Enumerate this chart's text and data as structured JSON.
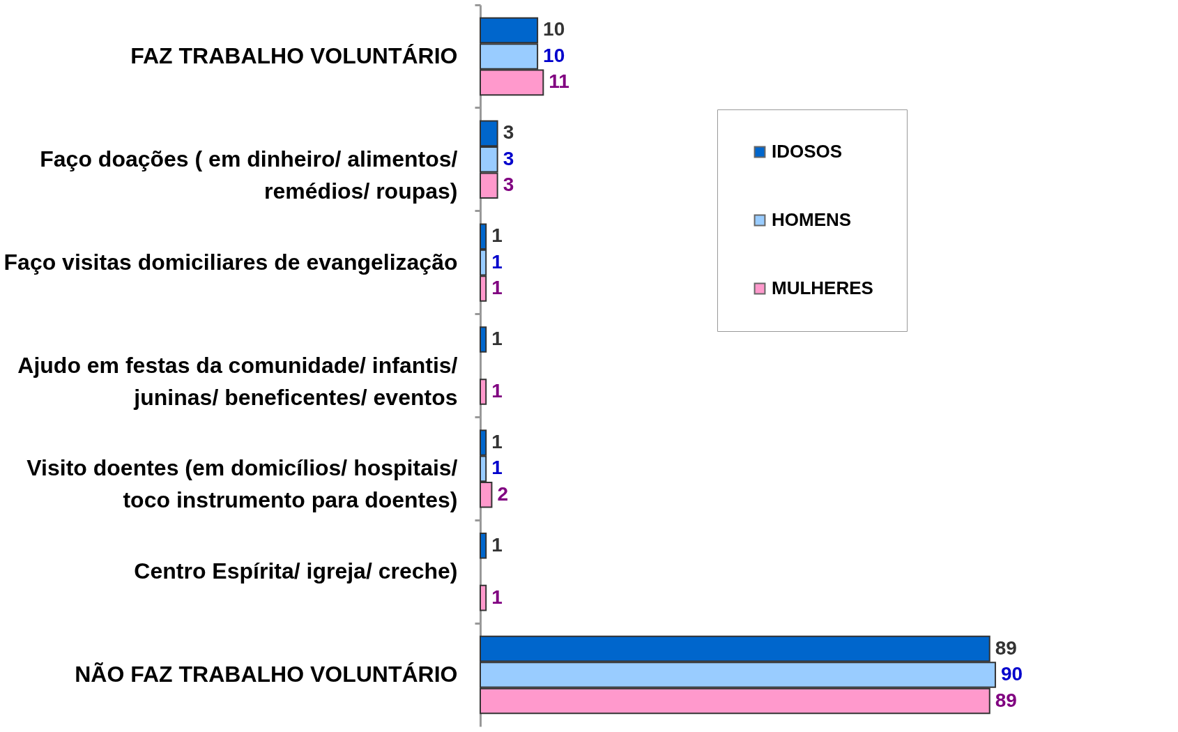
{
  "chart_data": {
    "type": "bar",
    "orientation": "horizontal",
    "categories": [
      "FAZ TRABALHO VOLUNTÁRIO",
      "Faço doações ( em dinheiro/ alimentos/\nremédios/ roupas)",
      "Faço visitas domiciliares de evangelização",
      "Ajudo em festas da comunidade/  infantis/\njuninas/ beneficentes/ eventos",
      "Visito doentes (em domicílios/ hospitais/\ntoco instrumento para doentes)",
      "Centro Espírita/ igreja/ creche)",
      "NÃO FAZ TRABALHO VOLUNTÁRIO"
    ],
    "series": [
      {
        "name": "IDOSOS",
        "color": "#0066cc",
        "values": [
          10,
          3,
          1,
          1,
          1,
          1,
          89
        ]
      },
      {
        "name": "HOMENS",
        "color": "#99ccff",
        "values": [
          10,
          3,
          1,
          null,
          1,
          null,
          90
        ]
      },
      {
        "name": "MULHERES",
        "color": "#ff99cc",
        "values": [
          11,
          3,
          1,
          1,
          2,
          1,
          89
        ]
      }
    ],
    "xlim": [
      0,
      95
    ],
    "data_labels": true,
    "legend": "top right",
    "grid": false
  }
}
